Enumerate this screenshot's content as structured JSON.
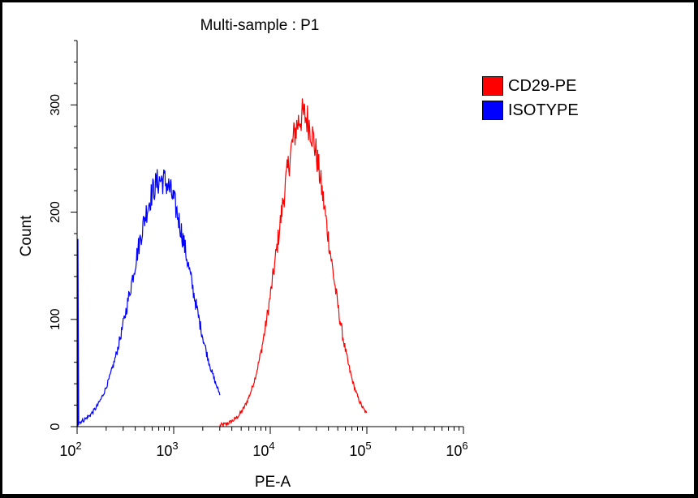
{
  "chart_data": {
    "type": "histogram",
    "title": "Multi-sample : P1",
    "xlabel": "PE-A",
    "ylabel": "Count",
    "xscale": "log",
    "xlim": [
      100,
      1000000
    ],
    "ylim": [
      0,
      360
    ],
    "x_ticks": [
      {
        "base": "10",
        "exp": "2"
      },
      {
        "base": "10",
        "exp": "3"
      },
      {
        "base": "10",
        "exp": "4"
      },
      {
        "base": "10",
        "exp": "5"
      },
      {
        "base": "10",
        "exp": "6"
      }
    ],
    "y_ticks": [
      "0",
      "100",
      "200",
      "300"
    ],
    "y_tick_values": [
      0,
      100,
      200,
      300
    ],
    "legend": {
      "position": "top-right"
    },
    "series": [
      {
        "name": "CD29-PE",
        "color": "#ff0000",
        "peak_x": 22000,
        "peak_count": 290,
        "log_sigma": 0.26,
        "x_range": [
          3000,
          100000
        ]
      },
      {
        "name": "ISOTYPE",
        "color": "#0000ff",
        "peak_x": 750,
        "peak_count": 230,
        "log_sigma": 0.3,
        "x_range": [
          100,
          3000
        ],
        "low_edge_count": 175
      }
    ]
  },
  "legend_items": [
    {
      "label": "CD29-PE",
      "color": "#ff0000"
    },
    {
      "label": "ISOTYPE",
      "color": "#0000ff"
    }
  ]
}
